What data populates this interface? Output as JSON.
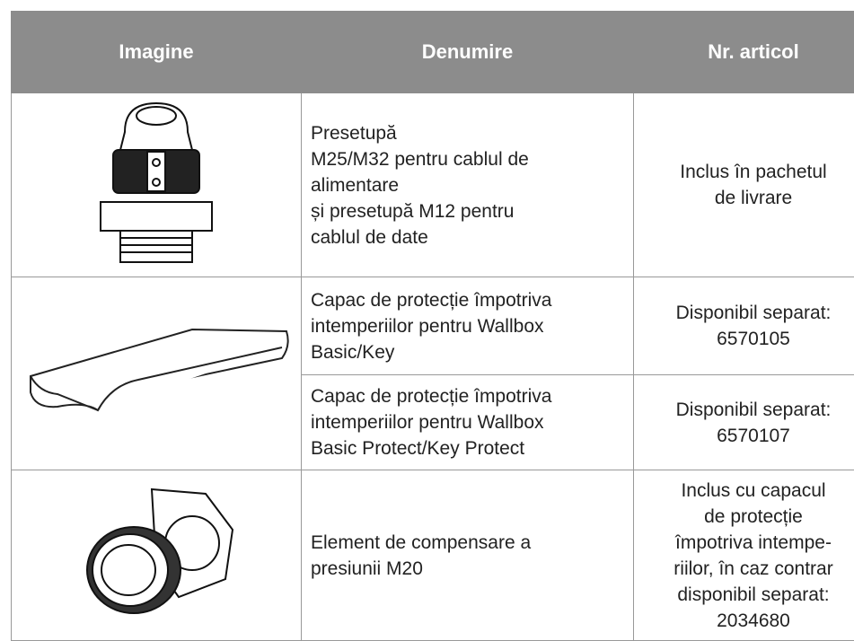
{
  "table": {
    "header": [
      "Imagine",
      "Denumire",
      "Nr. articol"
    ],
    "rows": [
      {
        "name": [
          "Presetupă",
          "M25/M32 pentru cablul de",
          "alimentare",
          "și presetupă M12 pentru",
          "cablul de date"
        ],
        "article": [
          "Inclus în pachetul",
          "de livrare"
        ]
      },
      {
        "name": [
          "Capac de protecție împotriva",
          "intemperiilor pentru Wallbox",
          "Basic/Key"
        ],
        "article": [
          "Disponibil separat:",
          "6570105"
        ]
      },
      {
        "name": [
          "Capac de protecție împotriva",
          "intemperiilor pentru Wallbox",
          "Basic Protect/Key Protect"
        ],
        "article": [
          "Disponibil separat:",
          "6570107"
        ]
      },
      {
        "name": [
          "Element de compensare a",
          "presiunii M20"
        ],
        "article": [
          "Inclus cu capacul",
          "de protecție",
          "împotriva intempe-",
          "riilor, în caz contrar",
          "disponibil separat:",
          "2034680"
        ]
      }
    ]
  }
}
